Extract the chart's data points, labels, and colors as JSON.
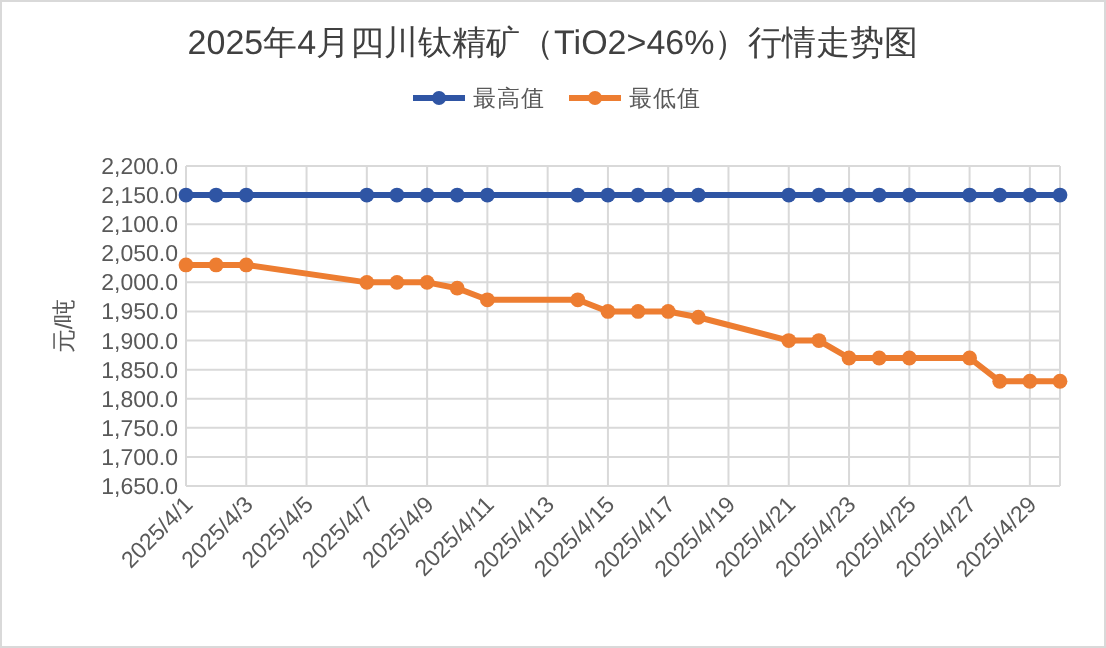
{
  "chart_data": {
    "type": "line",
    "title": "2025年4月四川钛精矿（TiO2>46%）行情走势图",
    "ylabel": "元/吨",
    "legend": "top",
    "grid": true,
    "marker": "circle",
    "line_style": "solid",
    "x": [
      "2025-04-01",
      "2025-04-02",
      "2025-04-03",
      "2025-04-07",
      "2025-04-08",
      "2025-04-09",
      "2025-04-10",
      "2025-04-11",
      "2025-04-14",
      "2025-04-15",
      "2025-04-16",
      "2025-04-17",
      "2025-04-18",
      "2025-04-21",
      "2025-04-22",
      "2025-04-23",
      "2025-04-24",
      "2025-04-25",
      "2025-04-27",
      "2025-04-28",
      "2025-04-29",
      "2025-04-30"
    ],
    "series": [
      {
        "name": "最高值",
        "color": "#2f55a4",
        "values": [
          2150,
          2150,
          2150,
          2150,
          2150,
          2150,
          2150,
          2150,
          2150,
          2150,
          2150,
          2150,
          2150,
          2150,
          2150,
          2150,
          2150,
          2150,
          2150,
          2150,
          2150,
          2150
        ]
      },
      {
        "name": "最低值",
        "color": "#ed7d31",
        "values": [
          2030,
          2030,
          2030,
          2000,
          2000,
          2000,
          1990,
          1970,
          1970,
          1950,
          1950,
          1950,
          1940,
          1900,
          1900,
          1870,
          1870,
          1870,
          1870,
          1830,
          1830,
          1830
        ]
      }
    ],
    "xlim": [
      "2025-04-01",
      "2025-04-30"
    ],
    "xticks": [
      {
        "value": "2025-04-01",
        "label": "2025/4/1"
      },
      {
        "value": "2025-04-03",
        "label": "2025/4/3"
      },
      {
        "value": "2025-04-05",
        "label": "2025/4/5"
      },
      {
        "value": "2025-04-07",
        "label": "2025/4/7"
      },
      {
        "value": "2025-04-09",
        "label": "2025/4/9"
      },
      {
        "value": "2025-04-11",
        "label": "2025/4/11"
      },
      {
        "value": "2025-04-13",
        "label": "2025/4/13"
      },
      {
        "value": "2025-04-15",
        "label": "2025/4/15"
      },
      {
        "value": "2025-04-17",
        "label": "2025/4/17"
      },
      {
        "value": "2025-04-19",
        "label": "2025/4/19"
      },
      {
        "value": "2025-04-21",
        "label": "2025/4/21"
      },
      {
        "value": "2025-04-23",
        "label": "2025/4/23"
      },
      {
        "value": "2025-04-25",
        "label": "2025/4/25"
      },
      {
        "value": "2025-04-27",
        "label": "2025/4/27"
      },
      {
        "value": "2025-04-29",
        "label": "2025/4/29"
      }
    ],
    "ylim": [
      1650,
      2200
    ],
    "yticks": [
      {
        "value": 1650,
        "label": "1,650.0"
      },
      {
        "value": 1700,
        "label": "1,700.0"
      },
      {
        "value": 1750,
        "label": "1,750.0"
      },
      {
        "value": 1800,
        "label": "1,800.0"
      },
      {
        "value": 1850,
        "label": "1,850.0"
      },
      {
        "value": 1900,
        "label": "1,900.0"
      },
      {
        "value": 1950,
        "label": "1,950.0"
      },
      {
        "value": 2000,
        "label": "2,000.0"
      },
      {
        "value": 2050,
        "label": "2,050.0"
      },
      {
        "value": 2100,
        "label": "2,100.0"
      },
      {
        "value": 2150,
        "label": "2,150.0"
      },
      {
        "value": 2200,
        "label": "2,200.0"
      }
    ]
  }
}
